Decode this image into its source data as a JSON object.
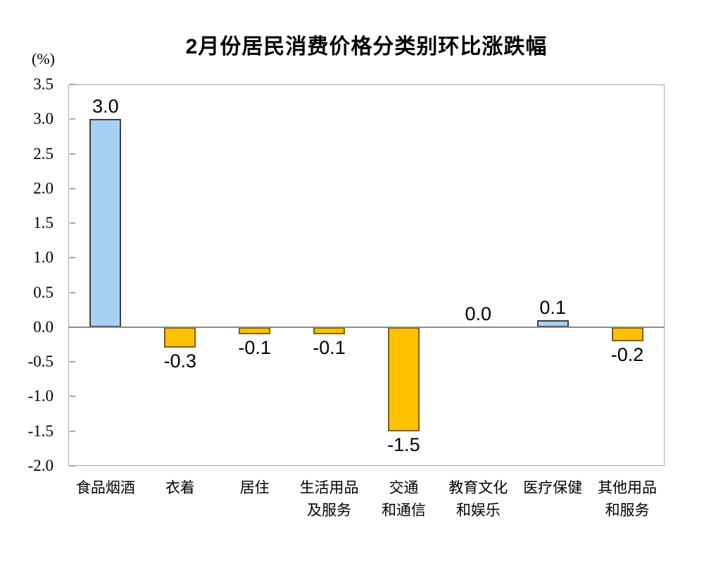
{
  "chart_data": {
    "type": "bar",
    "title": "2月份居民消费价格分类别环比涨跌幅",
    "ylabel": "(%)",
    "xlabel": "",
    "ylim": [
      -2.0,
      3.5
    ],
    "ytick_step": 0.5,
    "yticks": [
      "3.5",
      "3.0",
      "2.5",
      "2.0",
      "1.5",
      "1.0",
      "0.5",
      "0.0",
      "-0.5",
      "-1.0",
      "-1.5",
      "-2.0"
    ],
    "categories": [
      "食品烟酒",
      "衣着",
      "居住",
      "生活用品及服务",
      "交通和通信",
      "教育文化和娱乐",
      "医疗保健",
      "其他用品和服务"
    ],
    "category_label_lines": [
      [
        "食品烟酒"
      ],
      [
        "衣着"
      ],
      [
        "居住"
      ],
      [
        "生活用品",
        "及服务"
      ],
      [
        "交通",
        "和通信"
      ],
      [
        "教育文化",
        "和娱乐"
      ],
      [
        "医疗保健"
      ],
      [
        "其他用品",
        "和服务"
      ]
    ],
    "values": [
      3.0,
      -0.3,
      -0.1,
      -0.1,
      -1.5,
      0.0,
      0.1,
      -0.2
    ],
    "value_labels": [
      "3.0",
      "-0.3",
      "-0.1",
      "-0.1",
      "-1.5",
      "0.0",
      "0.1",
      "-0.2"
    ],
    "grid": false,
    "legend": false,
    "colors": {
      "positive_fill": "#A6D1F5",
      "positive_border": "#404040",
      "negative_fill": "#FFC000",
      "negative_border": "#806000",
      "axis_box": "#A6A6A6",
      "zero_line": "#8C8C8C",
      "text": "#000000"
    }
  }
}
